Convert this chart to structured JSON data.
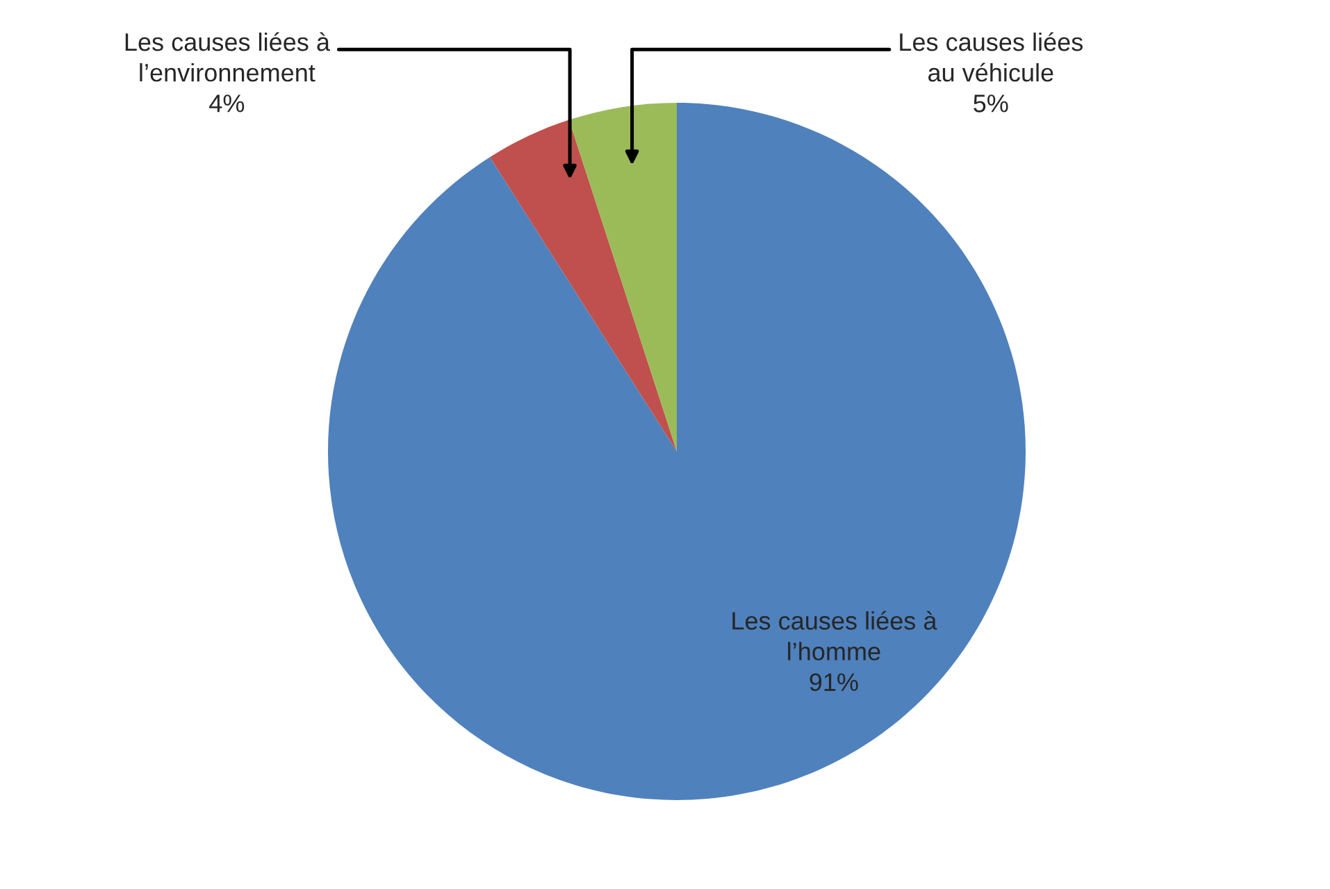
{
  "chart_data": {
    "type": "pie",
    "categories": [
      "Les causes liées à\nl’homme",
      "Les causes liées à\nl’environnement",
      "Les causes liées\nau véhicule"
    ],
    "values": [
      91,
      4,
      5
    ],
    "value_labels": [
      "91%",
      "4%",
      "5%"
    ],
    "colors": [
      "#4f81bd",
      "#c0504d",
      "#9bbb59"
    ],
    "legend": false
  }
}
